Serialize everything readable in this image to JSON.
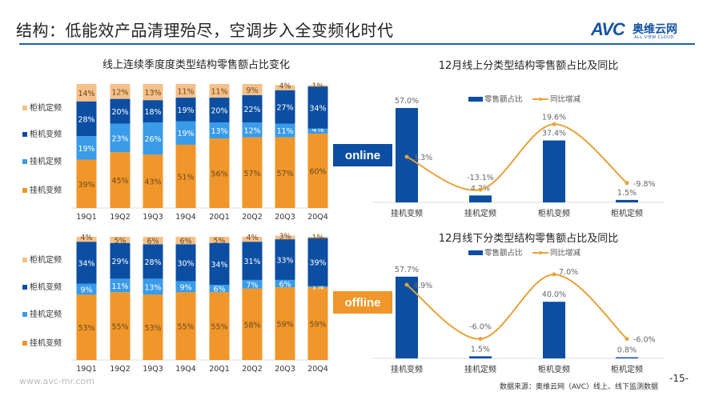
{
  "header": {
    "title": "结构：低能效产品清理殆尽，空调步入全变频化时代",
    "logo_text": "AVC",
    "logo_cn": "奥维云网",
    "logo_en": "ALL VIEW CLOUD"
  },
  "badges": {
    "online": "online",
    "offline": "offline"
  },
  "footer": {
    "website": "www.avc-mr.com",
    "source": "数据来源：奥维云网（AVC）线上、线下监测数据",
    "page": "-15-"
  },
  "colors": {
    "hang_inverter": "#F0962A",
    "hang_fixed": "#3A9BE8",
    "cabinet_inverter": "#0B4EA2",
    "cabinet_fixed": "#F5C08A",
    "line": "#E8A23A",
    "bar": "#0B4EA2"
  },
  "chart_data": [
    {
      "type": "bar",
      "stacked": true,
      "title": "线上连续季度度类型结构零售额占比变化",
      "categories": [
        "19Q1",
        "19Q2",
        "19Q3",
        "19Q4",
        "20Q1",
        "20Q2",
        "20Q3",
        "20Q4"
      ],
      "legend": [
        "柜机定频",
        "柜机变频",
        "挂机定频",
        "挂机变频"
      ],
      "legend_placement": "left",
      "series": [
        {
          "name": "挂机变频",
          "values": [
            39,
            45,
            43,
            51,
            56,
            57,
            57,
            60
          ]
        },
        {
          "name": "挂机定频",
          "values": [
            19,
            23,
            26,
            19,
            13,
            12,
            11,
            4
          ]
        },
        {
          "name": "柜机变频",
          "values": [
            28,
            20,
            18,
            19,
            20,
            22,
            27,
            34
          ]
        },
        {
          "name": "柜机定频",
          "values": [
            14,
            12,
            13,
            11,
            11,
            9,
            4,
            1
          ]
        }
      ],
      "unit": "%"
    },
    {
      "type": "bar",
      "stacked": true,
      "title": "",
      "categories": [
        "19Q1",
        "19Q2",
        "19Q3",
        "19Q4",
        "20Q1",
        "20Q2",
        "20Q3",
        "20Q4"
      ],
      "legend": [
        "柜机定频",
        "柜机变频",
        "挂机定频",
        "挂机变频"
      ],
      "legend_placement": "left",
      "series": [
        {
          "name": "挂机变频",
          "values": [
            53,
            55,
            53,
            55,
            55,
            58,
            59,
            59
          ]
        },
        {
          "name": "挂机定频",
          "values": [
            9,
            11,
            13,
            9,
            6,
            7,
            6,
            1
          ]
        },
        {
          "name": "柜机变频",
          "values": [
            34,
            29,
            28,
            30,
            34,
            31,
            33,
            39
          ]
        },
        {
          "name": "柜机定频",
          "values": [
            4,
            5,
            6,
            6,
            5,
            4,
            3,
            1
          ]
        }
      ],
      "unit": "%"
    },
    {
      "type": "bar+line",
      "title": "12月线上分类型结构零售额占比及同比",
      "categories": [
        "挂机变频",
        "挂机定频",
        "柜机变频",
        "柜机定频"
      ],
      "legend_placement": "top",
      "series": [
        {
          "name": "零售额占比",
          "type": "bar",
          "values": [
            57.0,
            4.2,
            37.4,
            1.5
          ],
          "labels": [
            "57.0%",
            "4.2%",
            "37.4%",
            "1.5%"
          ]
        },
        {
          "name": "同比增减",
          "type": "line",
          "values": [
            3.3,
            -13.1,
            19.6,
            -9.8
          ],
          "labels": [
            "3.3%",
            "-13.1%",
            "19.6%",
            "-9.8%"
          ]
        }
      ]
    },
    {
      "type": "bar+line",
      "title": "12月线下分类型结构零售额占比及同比",
      "categories": [
        "挂机变频",
        "挂机定频",
        "柜机变频",
        "柜机定频"
      ],
      "legend_placement": "top",
      "series": [
        {
          "name": "零售额占比",
          "type": "bar",
          "values": [
            57.7,
            1.5,
            40.0,
            0.8
          ],
          "labels": [
            "57.7%",
            "1.5%",
            "40.0%",
            "0.8%"
          ]
        },
        {
          "name": "同比增减",
          "type": "line",
          "values": [
            4.9,
            -6.0,
            7.0,
            -6.0
          ],
          "labels": [
            "4.9%",
            "-6.0%",
            "7.0%",
            "-6.0%"
          ]
        }
      ]
    }
  ]
}
